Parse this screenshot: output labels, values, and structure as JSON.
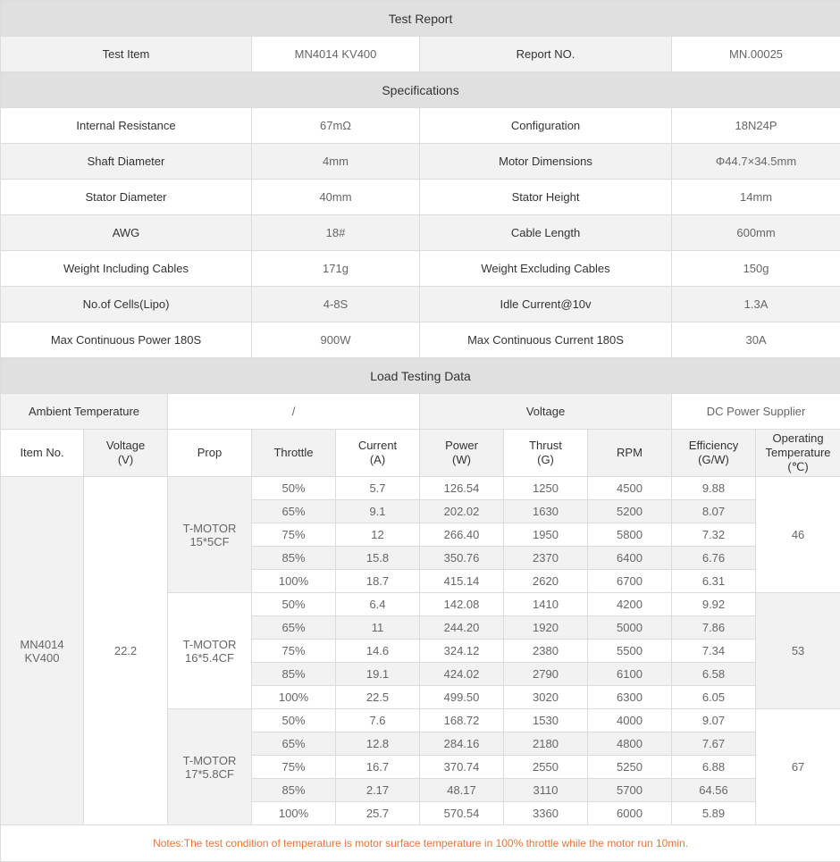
{
  "title": "Test Report",
  "test_item": {
    "label": "Test Item",
    "value": "MN4014 KV400",
    "report_label": "Report NO.",
    "report_value": "MN.00025"
  },
  "spec_title": "Specifications",
  "specs": [
    [
      "Internal Resistance",
      "67mΩ",
      "Configuration",
      "18N24P"
    ],
    [
      "Shaft Diameter",
      "4mm",
      "Motor Dimensions",
      "Φ44.7×34.5mm"
    ],
    [
      "Stator Diameter",
      "40mm",
      "Stator Height",
      "14mm"
    ],
    [
      "AWG",
      "18#",
      "Cable Length",
      "600mm"
    ],
    [
      "Weight Including Cables",
      "171g",
      "Weight Excluding Cables",
      "150g"
    ],
    [
      "No.of Cells(Lipo)",
      "4-8S",
      "Idle Current@10v",
      "1.3A"
    ],
    [
      "Max Continuous Power 180S",
      "900W",
      "Max Continuous Current 180S",
      "30A"
    ]
  ],
  "load_title": "Load Testing Data",
  "ambient": {
    "label": "Ambient Temperature",
    "value": "/",
    "voltage_label": "Voltage",
    "voltage_value": "DC Power Supplier"
  },
  "columns": [
    [
      "Item No.",
      ""
    ],
    [
      "Voltage",
      "(V)"
    ],
    [
      "Prop",
      ""
    ],
    [
      "Throttle",
      ""
    ],
    [
      "Current",
      "(A)"
    ],
    [
      "Power",
      "(W)"
    ],
    [
      "Thrust",
      "(G)"
    ],
    [
      "RPM",
      ""
    ],
    [
      "Efficiency",
      "(G/W)"
    ],
    [
      "Operating",
      "Temperature",
      "(℃)"
    ]
  ],
  "item_no": [
    "MN4014",
    "KV400"
  ],
  "voltage": "22.2",
  "groups": [
    {
      "prop": [
        "T-MOTOR",
        "15*5CF"
      ],
      "temp": "46",
      "rows": [
        [
          "50%",
          "5.7",
          "126.54",
          "1250",
          "4500",
          "9.88"
        ],
        [
          "65%",
          "9.1",
          "202.02",
          "1630",
          "5200",
          "8.07"
        ],
        [
          "75%",
          "12",
          "266.40",
          "1950",
          "5800",
          "7.32"
        ],
        [
          "85%",
          "15.8",
          "350.76",
          "2370",
          "6400",
          "6.76"
        ],
        [
          "100%",
          "18.7",
          "415.14",
          "2620",
          "6700",
          "6.31"
        ]
      ]
    },
    {
      "prop": [
        "T-MOTOR",
        "16*5.4CF"
      ],
      "temp": "53",
      "rows": [
        [
          "50%",
          "6.4",
          "142.08",
          "1410",
          "4200",
          "9.92"
        ],
        [
          "65%",
          "11",
          "244.20",
          "1920",
          "5000",
          "7.86"
        ],
        [
          "75%",
          "14.6",
          "324.12",
          "2380",
          "5500",
          "7.34"
        ],
        [
          "85%",
          "19.1",
          "424.02",
          "2790",
          "6100",
          "6.58"
        ],
        [
          "100%",
          "22.5",
          "499.50",
          "3020",
          "6300",
          "6.05"
        ]
      ]
    },
    {
      "prop": [
        "T-MOTOR",
        "17*5.8CF"
      ],
      "temp": "67",
      "rows": [
        [
          "50%",
          "7.6",
          "168.72",
          "1530",
          "4000",
          "9.07"
        ],
        [
          "65%",
          "12.8",
          "284.16",
          "2180",
          "4800",
          "7.67"
        ],
        [
          "75%",
          "16.7",
          "370.74",
          "2550",
          "5250",
          "6.88"
        ],
        [
          "85%",
          "2.17",
          "48.17",
          "3110",
          "5700",
          "64.56"
        ],
        [
          "100%",
          "25.7",
          "570.54",
          "3360",
          "6000",
          "5.89"
        ]
      ]
    }
  ],
  "notes": "Notes:The test condition of temperature is motor surface temperature in 100% throttle while the motor run 10min.",
  "colors": {
    "header": "#e0e0e0",
    "label": "#f2f2f2",
    "notes": "#e8773a"
  }
}
